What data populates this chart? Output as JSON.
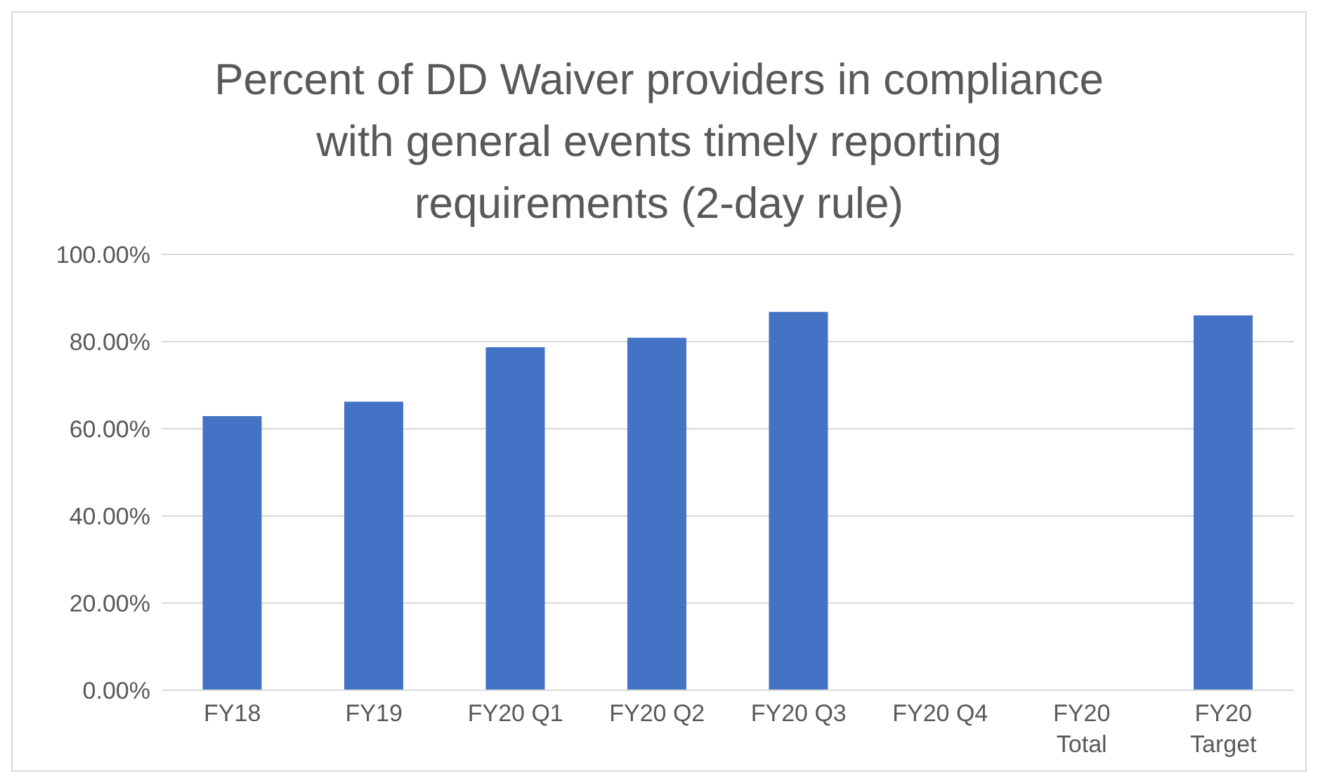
{
  "chart_data": {
    "type": "bar",
    "title": "Percent of DD Waiver providers in compliance with general events timely reporting requirements (2-day rule)",
    "categories": [
      "FY18",
      "FY19",
      "FY20 Q1",
      "FY20 Q2",
      "FY20 Q3",
      "FY20 Q4",
      "FY20 Total",
      "FY20 Target"
    ],
    "values": [
      62.9,
      66.2,
      78.7,
      80.9,
      86.8,
      null,
      null,
      86.0
    ],
    "color": "#4472c4",
    "ylim": [
      0,
      100
    ],
    "yticks": [
      {
        "value": 0,
        "label": "0.00%"
      },
      {
        "value": 20,
        "label": "20.00%"
      },
      {
        "value": 40,
        "label": "40.00%"
      },
      {
        "value": 60,
        "label": "60.00%"
      },
      {
        "value": 80,
        "label": "80.00%"
      },
      {
        "value": 100,
        "label": "100.00%"
      }
    ],
    "grid": "y",
    "legend": false
  }
}
